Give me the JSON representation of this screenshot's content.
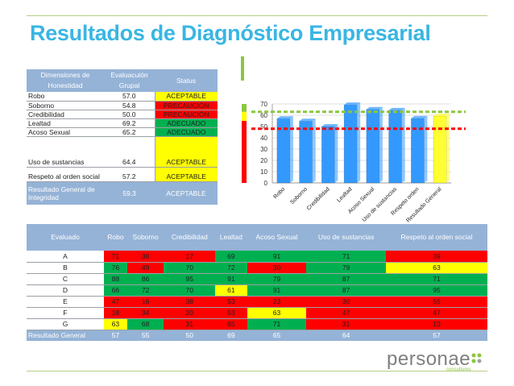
{
  "title": "Resultados de Diagnóstico Empresarial",
  "colors": {
    "green": "#00b050",
    "yellow": "#ffff00",
    "red": "#ff0000",
    "header": "#95b3d7",
    "title": "#39b6e3"
  },
  "status_table": {
    "headers": [
      "Dimensiones de Honestidad",
      "Evaluacuión Grupal",
      "Status"
    ],
    "rows": [
      {
        "label": "Robo",
        "value": "57.0",
        "status": "ACEPTABLE",
        "color": "#ffff00"
      },
      {
        "label": "Soborno",
        "value": "54.8",
        "status": "PRECAUCIÓN",
        "color": "#ff0000"
      },
      {
        "label": "Credibilidad",
        "value": "50.0",
        "status": "PRECAUCIÓN",
        "color": "#ff0000"
      },
      {
        "label": "Lealtad",
        "value": "69.2",
        "status": "ADECUADO",
        "color": "#00b050"
      },
      {
        "label": "Acoso Sexual",
        "value": "65.2",
        "status": "ADECUADO",
        "color": "#00b050"
      },
      {
        "label": "Uso de sustancias",
        "value": "64.4",
        "status": "ACEPTABLE",
        "color": "#ffff00"
      },
      {
        "label": "Respeto al orden social",
        "value": "57.2",
        "status": "ACEPTABLE",
        "color": "#ffff00"
      }
    ],
    "total": {
      "label": "Resultado General de Integridad",
      "value": "59.3",
      "status": "ACEPTABLE"
    }
  },
  "score_table": {
    "headers": [
      "Evaluado",
      "Robo",
      "Soborno",
      "Credibilidad",
      "Lealtad",
      "Acoso Sexual",
      "Uso de sustancias",
      "Respeto al orden social"
    ],
    "rows": [
      {
        "name": "A",
        "cells": [
          [
            "71",
            "#ff0000"
          ],
          [
            "30",
            "#ff0000"
          ],
          [
            "17",
            "#ff0000"
          ],
          [
            "69",
            "#00b050"
          ],
          [
            "91",
            "#00b050"
          ],
          [
            "71",
            "#00b050"
          ],
          [
            "39",
            "#ff0000"
          ]
        ]
      },
      {
        "name": "B",
        "cells": [
          [
            "76",
            "#00b050"
          ],
          [
            "49",
            "#ff0000"
          ],
          [
            "70",
            "#00b050"
          ],
          [
            "72",
            "#00b050"
          ],
          [
            "30",
            "#ff0000"
          ],
          [
            "79",
            "#00b050"
          ],
          [
            "63",
            "#ffff00"
          ]
        ]
      },
      {
        "name": "C",
        "cells": [
          [
            "88",
            "#00b050"
          ],
          [
            "86",
            "#00b050"
          ],
          [
            "95",
            "#00b050"
          ],
          [
            "91",
            "#00b050"
          ],
          [
            "79",
            "#00b050"
          ],
          [
            "87",
            "#00b050"
          ],
          [
            "71",
            "#00b050"
          ]
        ]
      },
      {
        "name": "D",
        "cells": [
          [
            "66",
            "#00b050"
          ],
          [
            "72",
            "#00b050"
          ],
          [
            "70",
            "#00b050"
          ],
          [
            "61",
            "#ffff00"
          ],
          [
            "91",
            "#00b050"
          ],
          [
            "87",
            "#00b050"
          ],
          [
            "95",
            "#00b050"
          ]
        ]
      },
      {
        "name": "E",
        "cells": [
          [
            "47",
            "#ff0000"
          ],
          [
            "16",
            "#ff0000"
          ],
          [
            "38",
            "#ff0000"
          ],
          [
            "53",
            "#ff0000"
          ],
          [
            "23",
            "#ff0000"
          ],
          [
            "30",
            "#ff0000"
          ],
          [
            "55",
            "#ff0000"
          ]
        ]
      },
      {
        "name": "F",
        "cells": [
          [
            "18",
            "#ff0000"
          ],
          [
            "34",
            "#ff0000"
          ],
          [
            "20",
            "#ff0000"
          ],
          [
            "53",
            "#ff0000"
          ],
          [
            "63",
            "#ffff00"
          ],
          [
            "47",
            "#ff0000"
          ],
          [
            "47",
            "#ff0000"
          ]
        ]
      },
      {
        "name": "G",
        "cells": [
          [
            "63",
            "#ffff00"
          ],
          [
            "68",
            "#00b050"
          ],
          [
            "31",
            "#ff0000"
          ],
          [
            "65",
            "#ff0000"
          ],
          [
            "71",
            "#00b050"
          ],
          [
            "31",
            "#ff0000"
          ],
          [
            "19",
            "#ff0000"
          ]
        ]
      }
    ],
    "total": {
      "name": "Resultado General",
      "values": [
        "57",
        "55",
        "50",
        "69",
        "65",
        "64",
        "57"
      ]
    }
  },
  "chart_data": {
    "type": "bar",
    "title": "",
    "xlabel": "",
    "ylabel": "",
    "categories": [
      "Robo",
      "Soborno",
      "Credibilidad",
      "Lealtad",
      "Acoso Sexual",
      "Uso de sustancias",
      "Respeto orden",
      "Resultado General"
    ],
    "values": [
      57.0,
      54.8,
      50.0,
      69.2,
      65.2,
      64.4,
      57.2,
      59.3
    ],
    "bar_colors": [
      "#3399ff",
      "#3399ff",
      "#3399ff",
      "#3399ff",
      "#3399ff",
      "#3399ff",
      "#3399ff",
      "#ffff33"
    ],
    "ylim": [
      0,
      70
    ],
    "yticks": [
      0,
      10,
      20,
      30,
      40,
      50,
      60,
      70
    ],
    "grid": true,
    "reference_lines": [
      {
        "value": 63,
        "color": "#8cc63f",
        "style": "dashed"
      },
      {
        "value": 48,
        "color": "#ff0000",
        "style": "dashed"
      }
    ],
    "side_bar": {
      "colors": [
        "#8cc63f",
        "#ffff00",
        "#ff0000"
      ]
    }
  },
  "logo": {
    "name": "personae",
    "sub": "consultores"
  }
}
